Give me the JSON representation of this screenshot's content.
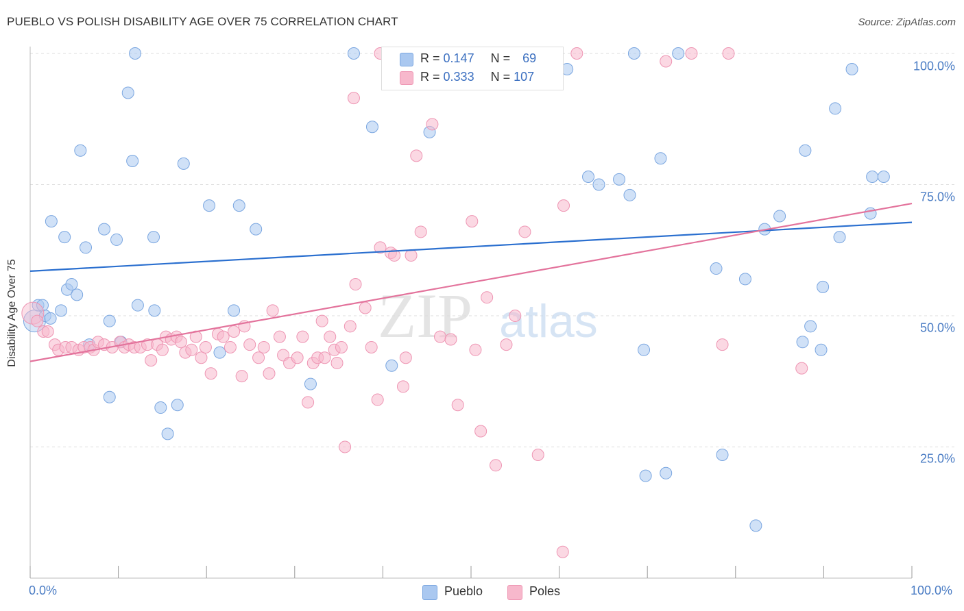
{
  "title": "PUEBLO VS POLISH DISABILITY AGE OVER 75 CORRELATION CHART",
  "source": "Source: ZipAtlas.com",
  "watermark": {
    "zip": "ZIP",
    "atlas": "atlas"
  },
  "colors": {
    "pueblo_fill": "#aac8f0",
    "pueblo_stroke": "#7aa6e0",
    "pueblo_line": "#2a6fcf",
    "poles_fill": "#f7b8cc",
    "poles_stroke": "#ee95b3",
    "poles_line": "#e3739c",
    "tick_text": "#4a7cc4",
    "grid": "#dddddd"
  },
  "legend": {
    "r_label": "R =",
    "n_label": "N =",
    "pueblo": {
      "r": "0.147",
      "n": "69"
    },
    "poles": {
      "r": "0.333",
      "n": "107"
    }
  },
  "chart_data": {
    "type": "scatter",
    "title": "PUEBLO VS POLISH DISABILITY AGE OVER 75 CORRELATION CHART",
    "xlabel": "",
    "ylabel": "Disability Age Over 75",
    "xlim": [
      0,
      100
    ],
    "ylim": [
      0,
      100
    ],
    "x_tick_labels": [
      "0.0%",
      "100.0%"
    ],
    "y_tick_labels": [
      "25.0%",
      "50.0%",
      "75.0%",
      "100.0%"
    ],
    "y_ticks": [
      25,
      50,
      75,
      100
    ],
    "grid": true,
    "legend_position": "top-center",
    "series": [
      {
        "name": "Pueblo",
        "color": "#aac8f0",
        "trend": {
          "x": [
            0,
            100
          ],
          "y": [
            58.5,
            67.8
          ]
        },
        "points": [
          {
            "x": 0.5,
            "y": 49,
            "big": true
          },
          {
            "x": 0.9,
            "y": 52
          },
          {
            "x": 1.4,
            "y": 52
          },
          {
            "x": 1.7,
            "y": 50
          },
          {
            "x": 2.3,
            "y": 49.5
          },
          {
            "x": 2.4,
            "y": 68
          },
          {
            "x": 3.5,
            "y": 51
          },
          {
            "x": 3.9,
            "y": 65
          },
          {
            "x": 4.2,
            "y": 55
          },
          {
            "x": 4.7,
            "y": 56
          },
          {
            "x": 5.3,
            "y": 54
          },
          {
            "x": 5.7,
            "y": 81.5
          },
          {
            "x": 6.3,
            "y": 63
          },
          {
            "x": 6.7,
            "y": 44.5
          },
          {
            "x": 8.4,
            "y": 66.5
          },
          {
            "x": 9,
            "y": 49
          },
          {
            "x": 9,
            "y": 34.5
          },
          {
            "x": 9.8,
            "y": 64.5
          },
          {
            "x": 10.3,
            "y": 45
          },
          {
            "x": 11.1,
            "y": 92.5
          },
          {
            "x": 11.6,
            "y": 79.5
          },
          {
            "x": 11.9,
            "y": 100
          },
          {
            "x": 12.2,
            "y": 52
          },
          {
            "x": 14,
            "y": 65
          },
          {
            "x": 14.1,
            "y": 51
          },
          {
            "x": 14.8,
            "y": 32.5
          },
          {
            "x": 15.6,
            "y": 27.5
          },
          {
            "x": 16.7,
            "y": 33
          },
          {
            "x": 17.4,
            "y": 79
          },
          {
            "x": 20.3,
            "y": 71
          },
          {
            "x": 21.5,
            "y": 43
          },
          {
            "x": 23.1,
            "y": 51
          },
          {
            "x": 23.7,
            "y": 71
          },
          {
            "x": 25.6,
            "y": 66.5
          },
          {
            "x": 31.8,
            "y": 37
          },
          {
            "x": 36.7,
            "y": 100
          },
          {
            "x": 38.8,
            "y": 86
          },
          {
            "x": 41,
            "y": 40.5
          },
          {
            "x": 45.3,
            "y": 85
          },
          {
            "x": 59.6,
            "y": 100
          },
          {
            "x": 60.9,
            "y": 97
          },
          {
            "x": 63.3,
            "y": 76.5
          },
          {
            "x": 64.5,
            "y": 75
          },
          {
            "x": 66.8,
            "y": 76
          },
          {
            "x": 68,
            "y": 73
          },
          {
            "x": 68.5,
            "y": 100
          },
          {
            "x": 69.6,
            "y": 43.5
          },
          {
            "x": 69.8,
            "y": 19.5
          },
          {
            "x": 71.5,
            "y": 80
          },
          {
            "x": 72.1,
            "y": 20
          },
          {
            "x": 73.5,
            "y": 100
          },
          {
            "x": 77.8,
            "y": 59
          },
          {
            "x": 78.5,
            "y": 23.5
          },
          {
            "x": 81.1,
            "y": 57
          },
          {
            "x": 82.3,
            "y": 10
          },
          {
            "x": 83.3,
            "y": 66.5
          },
          {
            "x": 85,
            "y": 69
          },
          {
            "x": 87.6,
            "y": 45
          },
          {
            "x": 87.9,
            "y": 81.5
          },
          {
            "x": 88.5,
            "y": 48
          },
          {
            "x": 89.7,
            "y": 43.5
          },
          {
            "x": 89.9,
            "y": 55.5
          },
          {
            "x": 91.3,
            "y": 89.5
          },
          {
            "x": 91.8,
            "y": 65
          },
          {
            "x": 93.2,
            "y": 97
          },
          {
            "x": 95.3,
            "y": 69.5
          },
          {
            "x": 95.5,
            "y": 76.5
          },
          {
            "x": 96.8,
            "y": 76.5
          }
        ]
      },
      {
        "name": "Poles",
        "color": "#f7b8cc",
        "trend": {
          "x": [
            0,
            100
          ],
          "y": [
            41.3,
            71.4
          ]
        },
        "points": [
          {
            "x": 0.3,
            "y": 50.5,
            "big": true
          },
          {
            "x": 0.8,
            "y": 49
          },
          {
            "x": 1.5,
            "y": 47
          },
          {
            "x": 2,
            "y": 47
          },
          {
            "x": 2.8,
            "y": 44.5
          },
          {
            "x": 3.2,
            "y": 43.5
          },
          {
            "x": 4,
            "y": 44
          },
          {
            "x": 4.7,
            "y": 44
          },
          {
            "x": 5.5,
            "y": 43.5
          },
          {
            "x": 6.1,
            "y": 44
          },
          {
            "x": 6.8,
            "y": 44
          },
          {
            "x": 7.2,
            "y": 43.5
          },
          {
            "x": 7.7,
            "y": 45
          },
          {
            "x": 8.4,
            "y": 44.5
          },
          {
            "x": 9.3,
            "y": 44
          },
          {
            "x": 10.2,
            "y": 45
          },
          {
            "x": 10.7,
            "y": 44
          },
          {
            "x": 11.2,
            "y": 44.5
          },
          {
            "x": 11.8,
            "y": 44
          },
          {
            "x": 12.5,
            "y": 44
          },
          {
            "x": 13.3,
            "y": 44.5
          },
          {
            "x": 13.7,
            "y": 41.5
          },
          {
            "x": 14.4,
            "y": 44.5
          },
          {
            "x": 15,
            "y": 43.5
          },
          {
            "x": 15.4,
            "y": 46
          },
          {
            "x": 16,
            "y": 45.5
          },
          {
            "x": 16.6,
            "y": 46
          },
          {
            "x": 17.1,
            "y": 45
          },
          {
            "x": 17.6,
            "y": 43
          },
          {
            "x": 18.3,
            "y": 43.5
          },
          {
            "x": 18.8,
            "y": 46
          },
          {
            "x": 19.4,
            "y": 42
          },
          {
            "x": 19.9,
            "y": 44
          },
          {
            "x": 20.5,
            "y": 39
          },
          {
            "x": 21.3,
            "y": 46.5
          },
          {
            "x": 21.9,
            "y": 46
          },
          {
            "x": 22.7,
            "y": 44
          },
          {
            "x": 23.1,
            "y": 47
          },
          {
            "x": 24,
            "y": 38.5
          },
          {
            "x": 24.3,
            "y": 48
          },
          {
            "x": 24.9,
            "y": 44.5
          },
          {
            "x": 25.9,
            "y": 42
          },
          {
            "x": 26.5,
            "y": 44
          },
          {
            "x": 27.1,
            "y": 39
          },
          {
            "x": 27.5,
            "y": 51
          },
          {
            "x": 28.3,
            "y": 46
          },
          {
            "x": 28.7,
            "y": 42.5
          },
          {
            "x": 29.4,
            "y": 41
          },
          {
            "x": 30.3,
            "y": 42
          },
          {
            "x": 30.9,
            "y": 46
          },
          {
            "x": 31.5,
            "y": 33.5
          },
          {
            "x": 32.1,
            "y": 41
          },
          {
            "x": 32.6,
            "y": 42
          },
          {
            "x": 33.1,
            "y": 49
          },
          {
            "x": 33.4,
            "y": 42
          },
          {
            "x": 34,
            "y": 46
          },
          {
            "x": 34.5,
            "y": 43.5
          },
          {
            "x": 34.8,
            "y": 41
          },
          {
            "x": 35.3,
            "y": 44
          },
          {
            "x": 35.7,
            "y": 25
          },
          {
            "x": 36.3,
            "y": 48
          },
          {
            "x": 36.9,
            "y": 56
          },
          {
            "x": 36.7,
            "y": 91.5
          },
          {
            "x": 38,
            "y": 51.5
          },
          {
            "x": 38.7,
            "y": 44
          },
          {
            "x": 39.4,
            "y": 34
          },
          {
            "x": 39.7,
            "y": 63
          },
          {
            "x": 39.7,
            "y": 100
          },
          {
            "x": 40.9,
            "y": 62
          },
          {
            "x": 41.3,
            "y": 61.5
          },
          {
            "x": 42.3,
            "y": 36.5
          },
          {
            "x": 42.6,
            "y": 42
          },
          {
            "x": 43.2,
            "y": 61.5
          },
          {
            "x": 43.5,
            "y": 95
          },
          {
            "x": 43.8,
            "y": 80.5
          },
          {
            "x": 45,
            "y": 100
          },
          {
            "x": 44.3,
            "y": 66
          },
          {
            "x": 45.6,
            "y": 86.5
          },
          {
            "x": 46.5,
            "y": 46
          },
          {
            "x": 47.7,
            "y": 45.5
          },
          {
            "x": 48.5,
            "y": 100
          },
          {
            "x": 48.5,
            "y": 33
          },
          {
            "x": 50.1,
            "y": 68
          },
          {
            "x": 50.5,
            "y": 43.5
          },
          {
            "x": 51.1,
            "y": 28
          },
          {
            "x": 51.8,
            "y": 53.5
          },
          {
            "x": 52.8,
            "y": 21.5
          },
          {
            "x": 54,
            "y": 44.5
          },
          {
            "x": 55,
            "y": 50
          },
          {
            "x": 56.1,
            "y": 66
          },
          {
            "x": 57.6,
            "y": 23.5
          },
          {
            "x": 60.5,
            "y": 71
          },
          {
            "x": 62,
            "y": 100
          },
          {
            "x": 72.1,
            "y": 98.5
          },
          {
            "x": 75,
            "y": 100
          },
          {
            "x": 78.5,
            "y": 44.5
          },
          {
            "x": 79.2,
            "y": 100
          },
          {
            "x": 87.5,
            "y": 40
          }
        ]
      }
    ],
    "extra_points_poles": [
      {
        "x": 42.4,
        "y": 95
      },
      {
        "x": 60.4,
        "y": 5
      }
    ]
  },
  "bottom_legend": {
    "pueblo": "Pueblo",
    "poles": "Poles"
  }
}
